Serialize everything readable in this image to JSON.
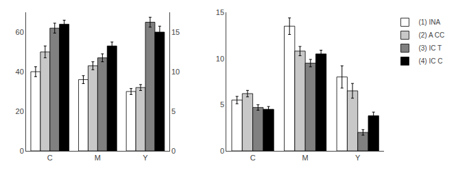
{
  "chart_data": [
    {
      "type": "bar",
      "categories": [
        "C",
        "M",
        "Y"
      ],
      "series": [
        {
          "name": "(1) INA",
          "color": "#ffffff",
          "values": [
            40,
            36,
            30
          ],
          "errors": [
            2.5,
            2,
            1.5
          ]
        },
        {
          "name": "(2) A CC",
          "color": "#c8c8c8",
          "values": [
            50,
            43,
            32
          ],
          "errors": [
            3,
            2,
            1.5
          ]
        },
        {
          "name": "(3) IC T",
          "color": "#808080",
          "values": [
            62,
            47,
            65
          ],
          "errors": [
            2.5,
            2,
            2.5
          ]
        },
        {
          "name": "(4) IC C",
          "color": "#000000",
          "values": [
            64,
            53,
            60
          ],
          "errors": [
            2,
            2,
            3
          ]
        }
      ],
      "ylim": [
        0,
        70
      ],
      "yticks": [
        0,
        20,
        40,
        60
      ],
      "y2lim": [
        0,
        17.5
      ],
      "y2ticks": [
        0,
        5,
        10,
        15
      ],
      "grid": false,
      "legend": false
    },
    {
      "type": "bar",
      "categories": [
        "C",
        "M",
        "Y"
      ],
      "series": [
        {
          "name": "(1) INA",
          "color": "#ffffff",
          "values": [
            5.5,
            13.5,
            8.0
          ],
          "errors": [
            0.4,
            0.9,
            1.2
          ]
        },
        {
          "name": "(2) A CC",
          "color": "#c8c8c8",
          "values": [
            6.2,
            10.8,
            6.5
          ],
          "errors": [
            0.35,
            0.5,
            0.8
          ]
        },
        {
          "name": "(3) IC T",
          "color": "#808080",
          "values": [
            4.7,
            9.5,
            2.0
          ],
          "errors": [
            0.3,
            0.4,
            0.3
          ]
        },
        {
          "name": "(4) IC C",
          "color": "#000000",
          "values": [
            4.5,
            10.5,
            3.8
          ],
          "errors": [
            0.3,
            0.4,
            0.4
          ]
        }
      ],
      "ylim": [
        0,
        15
      ],
      "yticks": [
        0,
        5,
        10,
        15
      ],
      "grid": false,
      "legend": "upper right"
    }
  ]
}
